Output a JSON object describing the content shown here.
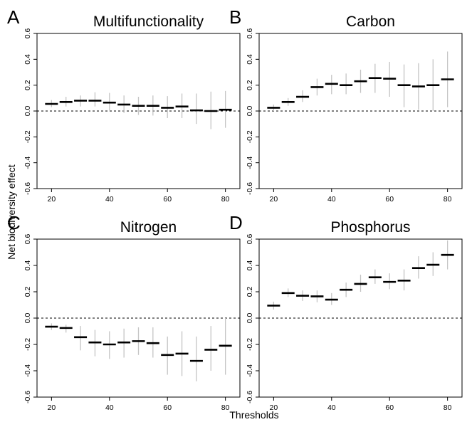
{
  "figure": {
    "xlabel": "Thresholds",
    "ylabel": "Net biodiversity effect"
  },
  "chart_data": [
    {
      "type": "errorbar",
      "panel": "A",
      "title": "Multifunctionality",
      "x": [
        20,
        25,
        30,
        35,
        40,
        45,
        50,
        55,
        60,
        65,
        70,
        75,
        80
      ],
      "values": [
        0.055,
        0.07,
        0.08,
        0.08,
        0.065,
        0.05,
        0.04,
        0.04,
        0.025,
        0.035,
        0.005,
        0.0,
        0.01
      ],
      "lower": [
        0.03,
        0.035,
        0.035,
        0.035,
        0.005,
        -0.015,
        -0.03,
        -0.035,
        -0.055,
        -0.055,
        -0.1,
        -0.14,
        -0.13
      ],
      "upper": [
        0.085,
        0.11,
        0.12,
        0.145,
        0.14,
        0.12,
        0.11,
        0.12,
        0.115,
        0.135,
        0.135,
        0.15,
        0.155
      ],
      "xlim": [
        15,
        85
      ],
      "ylim": [
        -0.6,
        0.6
      ],
      "xticks": [
        "20",
        "40",
        "60",
        "80"
      ],
      "yticks": [
        "-0.6",
        "-0.4",
        "-0.2",
        "0.0",
        "0.2",
        "0.4",
        "0.6"
      ],
      "reference_line": 0
    },
    {
      "type": "errorbar",
      "panel": "B",
      "title": "Carbon",
      "x": [
        20,
        25,
        30,
        35,
        40,
        45,
        50,
        55,
        60,
        65,
        70,
        75,
        80
      ],
      "values": [
        0.025,
        0.07,
        0.11,
        0.185,
        0.21,
        0.2,
        0.23,
        0.255,
        0.25,
        0.2,
        0.19,
        0.2,
        0.245
      ],
      "lower": [
        0.0,
        0.04,
        0.07,
        0.12,
        0.13,
        0.13,
        0.14,
        0.14,
        0.11,
        0.03,
        0.01,
        0.0,
        0.03
      ],
      "upper": [
        0.05,
        0.1,
        0.16,
        0.25,
        0.28,
        0.29,
        0.32,
        0.365,
        0.38,
        0.36,
        0.37,
        0.4,
        0.46
      ],
      "xlim": [
        15,
        85
      ],
      "ylim": [
        -0.6,
        0.6
      ],
      "xticks": [
        "20",
        "40",
        "60",
        "80"
      ],
      "yticks": [
        "-0.6",
        "-0.4",
        "-0.2",
        "0.0",
        "0.2",
        "0.4",
        "0.6"
      ],
      "reference_line": 0
    },
    {
      "type": "errorbar",
      "panel": "C",
      "title": "Nitrogen",
      "x": [
        20,
        25,
        30,
        35,
        40,
        45,
        50,
        55,
        60,
        65,
        70,
        75,
        80
      ],
      "values": [
        -0.065,
        -0.075,
        -0.145,
        -0.185,
        -0.2,
        -0.185,
        -0.175,
        -0.19,
        -0.28,
        -0.27,
        -0.325,
        -0.24,
        -0.21
      ],
      "lower": [
        -0.09,
        -0.11,
        -0.245,
        -0.29,
        -0.31,
        -0.3,
        -0.28,
        -0.3,
        -0.43,
        -0.44,
        -0.48,
        -0.4,
        -0.43
      ],
      "upper": [
        -0.04,
        -0.05,
        -0.06,
        -0.09,
        -0.1,
        -0.08,
        -0.07,
        -0.07,
        -0.14,
        -0.1,
        -0.14,
        -0.06,
        0.0
      ],
      "xlim": [
        15,
        85
      ],
      "ylim": [
        -0.6,
        0.6
      ],
      "xticks": [
        "20",
        "40",
        "60",
        "80"
      ],
      "yticks": [
        "-0.6",
        "-0.4",
        "-0.2",
        "0.0",
        "0.2",
        "0.4",
        "0.6"
      ],
      "reference_line": 0
    },
    {
      "type": "errorbar",
      "panel": "D",
      "title": "Phosphorus",
      "x": [
        20,
        25,
        30,
        35,
        40,
        45,
        50,
        55,
        60,
        65,
        70,
        75,
        80
      ],
      "values": [
        0.095,
        0.19,
        0.17,
        0.165,
        0.14,
        0.215,
        0.26,
        0.31,
        0.275,
        0.285,
        0.38,
        0.405,
        0.48
      ],
      "lower": [
        0.065,
        0.16,
        0.13,
        0.12,
        0.1,
        0.16,
        0.2,
        0.26,
        0.22,
        0.21,
        0.3,
        0.32,
        0.37
      ],
      "upper": [
        0.125,
        0.225,
        0.21,
        0.21,
        0.19,
        0.27,
        0.33,
        0.37,
        0.34,
        0.37,
        0.47,
        0.5,
        0.59
      ],
      "xlim": [
        15,
        85
      ],
      "ylim": [
        -0.6,
        0.6
      ],
      "xticks": [
        "20",
        "40",
        "60",
        "80"
      ],
      "yticks": [
        "-0.6",
        "-0.4",
        "-0.2",
        "0.0",
        "0.2",
        "0.4",
        "0.6"
      ],
      "reference_line": 0
    }
  ]
}
